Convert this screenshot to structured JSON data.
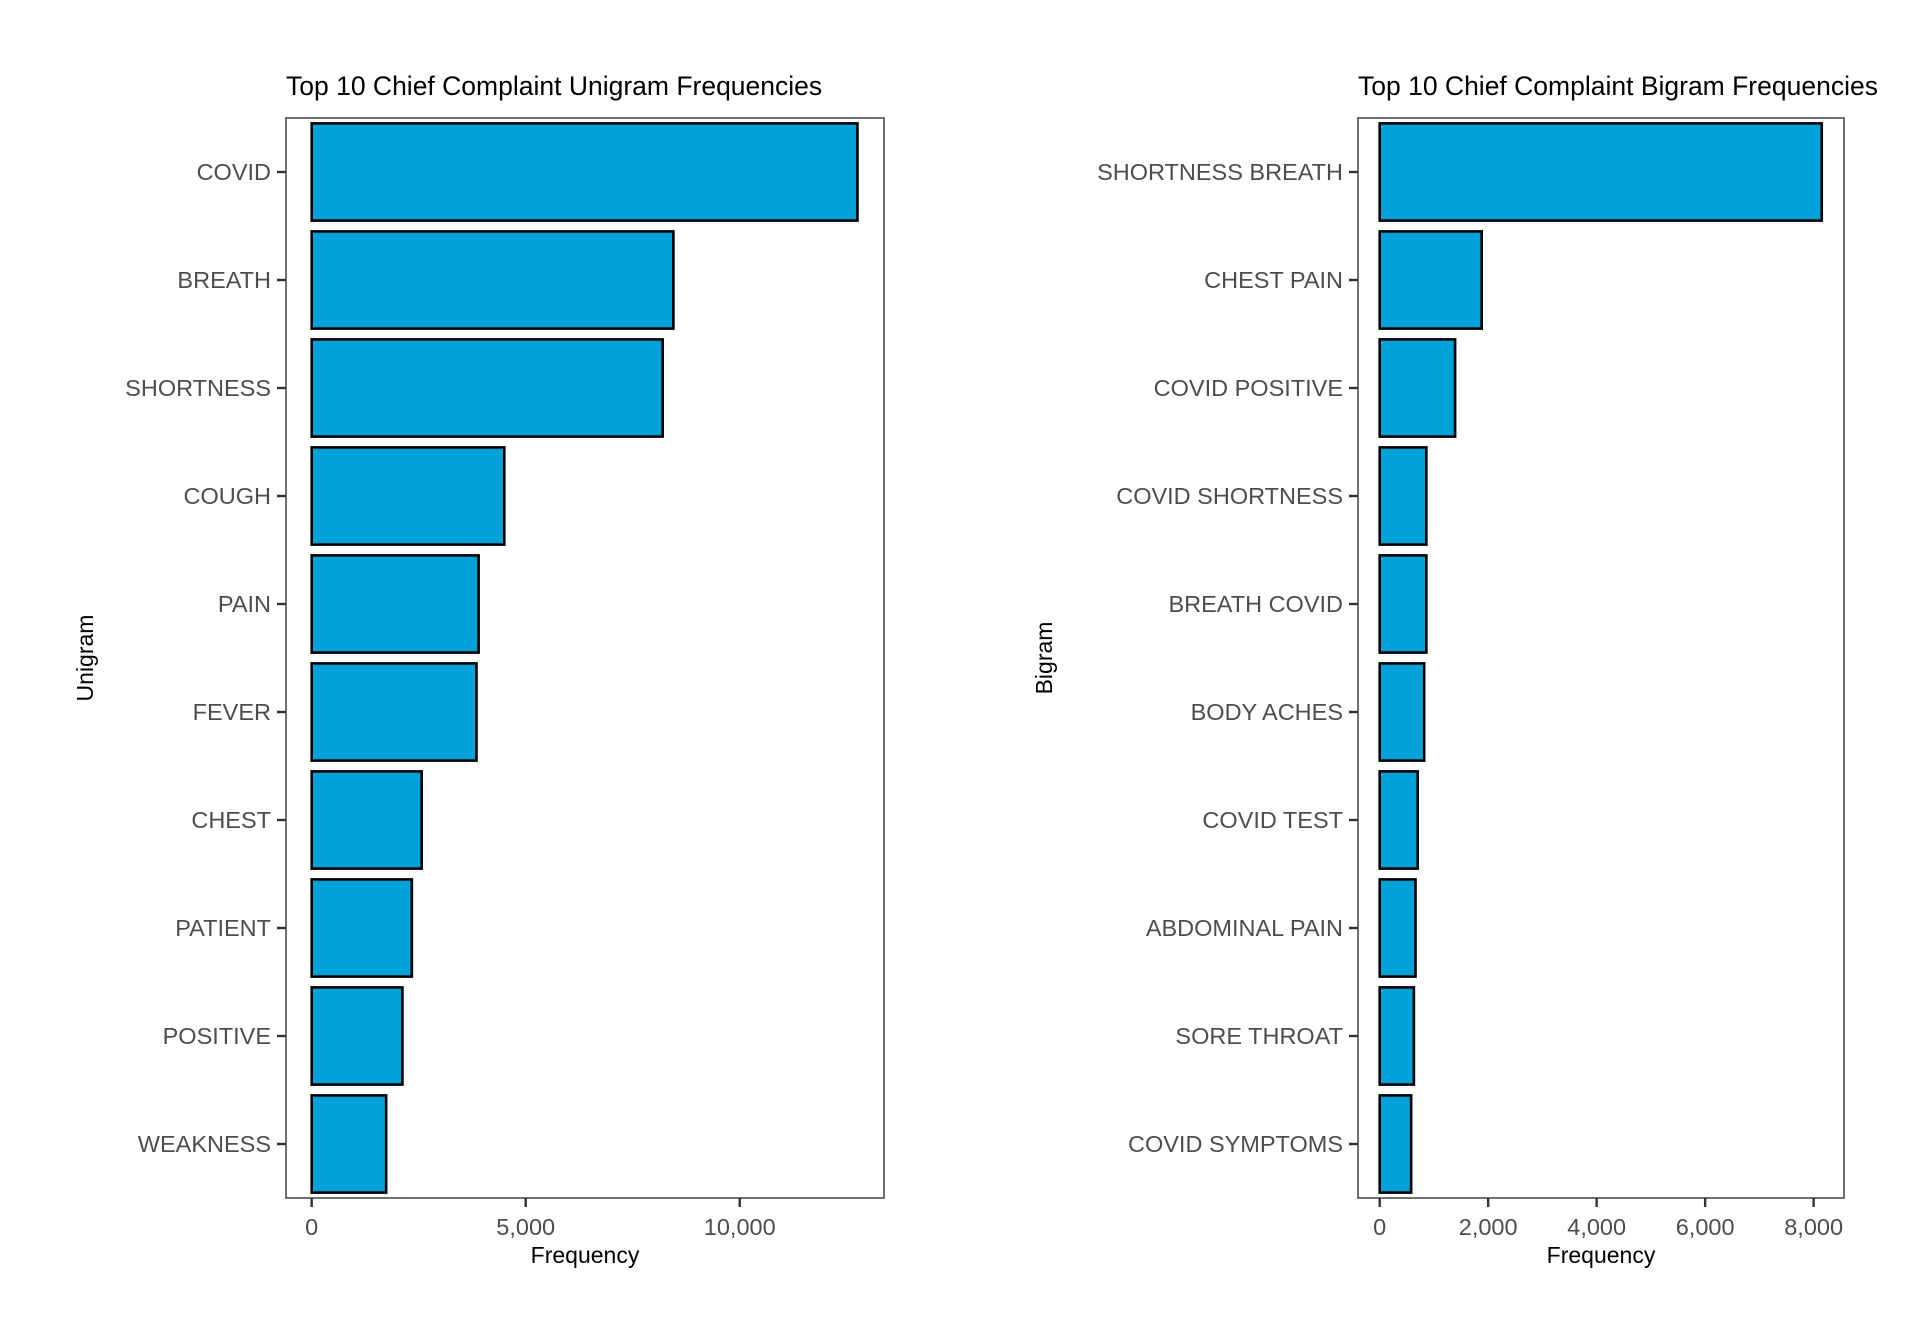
{
  "chart_data": [
    {
      "type": "bar",
      "orientation": "horizontal",
      "title": "Top 10 Chief Complaint Unigram Frequencies",
      "xlabel": "Frequency",
      "ylabel": "Unigram",
      "categories": [
        "COVID",
        "BREATH",
        "SHORTNESS",
        "COUGH",
        "PAIN",
        "FEVER",
        "CHEST",
        "PATIENT",
        "POSITIVE",
        "WEAKNESS"
      ],
      "values": [
        12750,
        8450,
        8200,
        4500,
        3900,
        3850,
        2570,
        2340,
        2120,
        1740
      ],
      "xlim": [
        -600,
        13370
      ],
      "xticks": [
        0,
        5000,
        10000
      ],
      "xtick_labels": [
        "0",
        "5,000",
        "10,000"
      ],
      "grid": false,
      "legend": "none",
      "bar_color": "#00A1D9",
      "bar_edge_color": "#000000"
    },
    {
      "type": "bar",
      "orientation": "horizontal",
      "title": "Top 10 Chief Complaint Bigram Frequencies",
      "xlabel": "Frequency",
      "ylabel": "Bigram",
      "categories": [
        "SHORTNESS BREATH",
        "CHEST PAIN",
        "COVID POSITIVE",
        "COVID SHORTNESS",
        "BREATH COVID",
        "BODY ACHES",
        "COVID TEST",
        "ABDOMINAL PAIN",
        "SORE THROAT",
        "COVID SYMPTOMS"
      ],
      "values": [
        8150,
        1880,
        1390,
        860,
        860,
        820,
        700,
        660,
        630,
        580
      ],
      "xlim": [
        -400,
        8560
      ],
      "xticks": [
        0,
        2000,
        4000,
        6000,
        8000
      ],
      "xtick_labels": [
        "0",
        "2,000",
        "4,000",
        "6,000",
        "8,000"
      ],
      "grid": false,
      "legend": "none",
      "bar_color": "#00A1D9",
      "bar_edge_color": "#000000"
    }
  ]
}
